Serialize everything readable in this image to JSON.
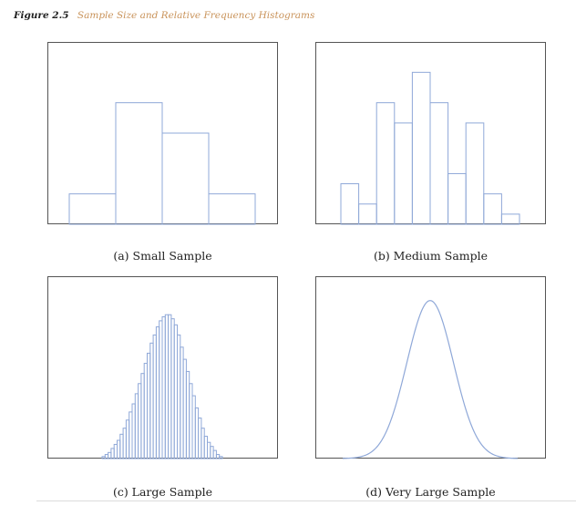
{
  "figure": {
    "label": "Figure 2.5",
    "title": "Sample Size and Relative Frequency Histograms"
  },
  "colors": {
    "bars": "#8fa8d8",
    "frame": "#555555",
    "caption_label": "#222222",
    "caption_title": "#c9935a"
  },
  "chart_data": [
    {
      "type": "bar",
      "caption": "(a) Small Sample",
      "values": [
        0.15,
        0.6,
        0.45,
        0.15
      ],
      "ylim": [
        0,
        0.9
      ]
    },
    {
      "type": "bar",
      "caption": "(b) Medium Sample",
      "values": [
        0.2,
        0.1,
        0.6,
        0.5,
        0.75,
        0.6,
        0.25,
        0.5,
        0.15,
        0.05
      ],
      "ylim": [
        0,
        0.9
      ]
    },
    {
      "type": "bar",
      "caption": "(c) Large Sample",
      "values": [
        0.01,
        0.02,
        0.03,
        0.05,
        0.07,
        0.09,
        0.12,
        0.15,
        0.19,
        0.23,
        0.27,
        0.32,
        0.37,
        0.42,
        0.47,
        0.52,
        0.57,
        0.61,
        0.65,
        0.68,
        0.7,
        0.71,
        0.71,
        0.69,
        0.66,
        0.61,
        0.55,
        0.49,
        0.43,
        0.37,
        0.31,
        0.25,
        0.2,
        0.15,
        0.11,
        0.08,
        0.06,
        0.04,
        0.02,
        0.01
      ],
      "ylim": [
        0,
        0.9
      ]
    },
    {
      "type": "line",
      "caption": "(d) Very Large Sample",
      "curve": "normal",
      "ylim": [
        0,
        0.9
      ]
    }
  ]
}
